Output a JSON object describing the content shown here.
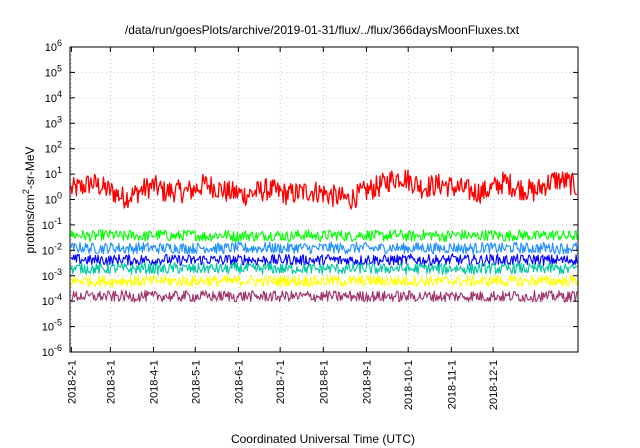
{
  "chart_data": {
    "type": "line",
    "title": "/data/run/goesPlots/archive/2019-01-31/flux/../flux/366daysMoonFluxes.txt",
    "xlabel": "Coordinated Universal Time (UTC)",
    "ylabel": "protons/cm2-sr-MeV",
    "y_scale": "log",
    "ylim": [
      1e-06,
      1000000.0
    ],
    "xlim": [
      "2018-01-31",
      "2019-01-31"
    ],
    "x_ticks": [
      "2018-2-1",
      "2018-3-1",
      "2018-4-1",
      "2018-5-1",
      "2018-6-1",
      "2018-7-1",
      "2018-8-1",
      "2018-9-1",
      "2018-10-1",
      "2018-11-1",
      "2018-12-1"
    ],
    "y_ticks": [
      {
        "base": "10",
        "exp": "-6",
        "value": 1e-06
      },
      {
        "base": "10",
        "exp": "-5",
        "value": 1e-05
      },
      {
        "base": "10",
        "exp": "-4",
        "value": 0.0001
      },
      {
        "base": "10",
        "exp": "-3",
        "value": 0.001
      },
      {
        "base": "10",
        "exp": "-2",
        "value": 0.01
      },
      {
        "base": "10",
        "exp": "-1",
        "value": 0.1
      },
      {
        "base": "10",
        "exp": "0",
        "value": 1
      },
      {
        "base": "10",
        "exp": "1",
        "value": 10
      },
      {
        "base": "10",
        "exp": "2",
        "value": 100
      },
      {
        "base": "10",
        "exp": "3",
        "value": 1000
      },
      {
        "base": "10",
        "exp": "4",
        "value": 10000
      },
      {
        "base": "10",
        "exp": "5",
        "value": 100000
      },
      {
        "base": "10",
        "exp": "6",
        "value": 1000000
      }
    ],
    "grid": true,
    "series": [
      {
        "color": "#ff0000",
        "values": [
          2.5,
          3.0,
          4.5,
          3.0,
          2.0,
          1.2,
          1.5,
          2.5,
          3.5,
          2.0,
          2.2,
          2.0,
          2.5,
          4.0,
          3.0,
          2.0,
          1.8,
          1.5,
          2.0,
          2.5,
          2.0,
          1.6,
          1.8,
          2.2,
          2.0,
          1.5,
          1.2,
          1.0,
          1.6,
          2.5,
          3.5,
          6.0,
          8.0,
          5.0,
          3.0,
          3.5,
          4.0,
          3.0,
          2.5,
          2.0,
          2.0,
          3.0,
          5.0,
          3.0,
          2.5,
          2.0,
          4.0,
          6.0,
          5.0,
          3.0
        ]
      },
      {
        "color": "#00ff00",
        "values": [
          0.04,
          0.04,
          0.035,
          0.04,
          0.04,
          0.035,
          0.04,
          0.035,
          0.04,
          0.04,
          0.035,
          0.04,
          0.04,
          0.035,
          0.04,
          0.04,
          0.035,
          0.04,
          0.035,
          0.04,
          0.04,
          0.035,
          0.04,
          0.04,
          0.035,
          0.04,
          0.04,
          0.035,
          0.04,
          0.04,
          0.035,
          0.04,
          0.04,
          0.035,
          0.04,
          0.04,
          0.035,
          0.04,
          0.04,
          0.035,
          0.04,
          0.04,
          0.035,
          0.04,
          0.04,
          0.035,
          0.04,
          0.04,
          0.035,
          0.04
        ]
      },
      {
        "color": "#1e90ff",
        "values": [
          0.012,
          0.013,
          0.012,
          0.012,
          0.013,
          0.012,
          0.012,
          0.013,
          0.012,
          0.012,
          0.013,
          0.012,
          0.012,
          0.013,
          0.012,
          0.012,
          0.013,
          0.012,
          0.012,
          0.013,
          0.012,
          0.012,
          0.013,
          0.012,
          0.012,
          0.013,
          0.012,
          0.012,
          0.013,
          0.012,
          0.012,
          0.013,
          0.012,
          0.012,
          0.013,
          0.012,
          0.012,
          0.013,
          0.012,
          0.012,
          0.013,
          0.012,
          0.012,
          0.013,
          0.012,
          0.012,
          0.013,
          0.012,
          0.012,
          0.013
        ]
      },
      {
        "color": "#0000ff",
        "values": [
          0.004,
          0.0045,
          0.004,
          0.0042,
          0.004,
          0.0045,
          0.004,
          0.0042,
          0.004,
          0.0045,
          0.004,
          0.0042,
          0.004,
          0.0045,
          0.004,
          0.0042,
          0.004,
          0.0045,
          0.004,
          0.0042,
          0.004,
          0.0045,
          0.004,
          0.0042,
          0.004,
          0.0045,
          0.004,
          0.0042,
          0.004,
          0.0045,
          0.004,
          0.0042,
          0.004,
          0.0045,
          0.004,
          0.0042,
          0.004,
          0.0045,
          0.004,
          0.0042,
          0.004,
          0.0045,
          0.004,
          0.0042,
          0.004,
          0.0045,
          0.004,
          0.0042,
          0.004,
          0.0045
        ]
      },
      {
        "color": "#00c8a0",
        "values": [
          0.0018,
          0.002,
          0.0019,
          0.0018,
          0.002,
          0.0019,
          0.0018,
          0.002,
          0.0019,
          0.0018,
          0.002,
          0.0019,
          0.0018,
          0.002,
          0.0019,
          0.0018,
          0.002,
          0.0019,
          0.0018,
          0.002,
          0.0019,
          0.0018,
          0.002,
          0.0019,
          0.0018,
          0.002,
          0.0019,
          0.0018,
          0.002,
          0.0019,
          0.0018,
          0.002,
          0.0019,
          0.0018,
          0.002,
          0.0019,
          0.0018,
          0.002,
          0.0019,
          0.0018,
          0.002,
          0.0019,
          0.0018,
          0.002,
          0.0019,
          0.0018,
          0.002,
          0.0019,
          0.0018,
          0.002
        ]
      },
      {
        "color": "#ffff00",
        "values": [
          0.0006,
          0.00065,
          0.0006,
          0.00062,
          0.0006,
          0.00065,
          0.0006,
          0.00062,
          0.0006,
          0.00065,
          0.0006,
          0.00062,
          0.0006,
          0.00065,
          0.0006,
          0.00062,
          0.0006,
          0.00065,
          0.0006,
          0.00062,
          0.0006,
          0.00065,
          0.0006,
          0.00062,
          0.0006,
          0.00065,
          0.0006,
          0.00062,
          0.0006,
          0.00065,
          0.0006,
          0.00062,
          0.0006,
          0.00065,
          0.0006,
          0.00062,
          0.0006,
          0.00065,
          0.0006,
          0.00062,
          0.0006,
          0.00065,
          0.0006,
          0.00062,
          0.0006,
          0.00065,
          0.0006,
          0.00062,
          0.0006,
          0.00065
        ]
      },
      {
        "color": "#a0306a",
        "values": [
          0.00015,
          0.00016,
          0.00015,
          0.00016,
          0.00015,
          0.00016,
          0.00015,
          0.00016,
          0.00015,
          0.00016,
          0.00015,
          0.00016,
          0.00015,
          0.00016,
          0.00015,
          0.00016,
          0.00015,
          0.00016,
          0.00015,
          0.00016,
          0.00015,
          0.00016,
          0.00015,
          0.00016,
          0.00015,
          0.00016,
          0.00015,
          0.00016,
          0.00015,
          0.00016,
          0.00015,
          0.00016,
          0.00015,
          0.00016,
          0.00015,
          0.00016,
          0.00015,
          0.00016,
          0.00015,
          0.00016,
          0.00015,
          0.00016,
          0.00015,
          0.00016,
          0.00015,
          0.00016,
          0.00015,
          0.00016,
          0.00015,
          0.00016
        ]
      }
    ]
  }
}
